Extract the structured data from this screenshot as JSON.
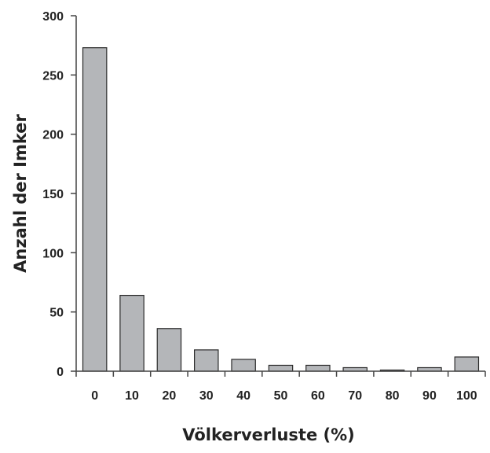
{
  "chart_data": {
    "type": "bar",
    "categories": [
      "0",
      "10",
      "20",
      "30",
      "40",
      "50",
      "60",
      "70",
      "80",
      "90",
      "100"
    ],
    "values": [
      273,
      64,
      36,
      18,
      10,
      5,
      5,
      3,
      1,
      3,
      12
    ],
    "title": "",
    "xlabel": "Völkerverluste (%)",
    "ylabel": "Anzahl der Imker",
    "ylim": [
      0,
      300
    ],
    "yticks": [
      0,
      50,
      100,
      150,
      200,
      250,
      300
    ],
    "grid": false,
    "legend": "none",
    "colors": {
      "bar_fill": "#b4b6b9",
      "bar_stroke": "#2a2a2a",
      "axis": "#444444"
    }
  }
}
